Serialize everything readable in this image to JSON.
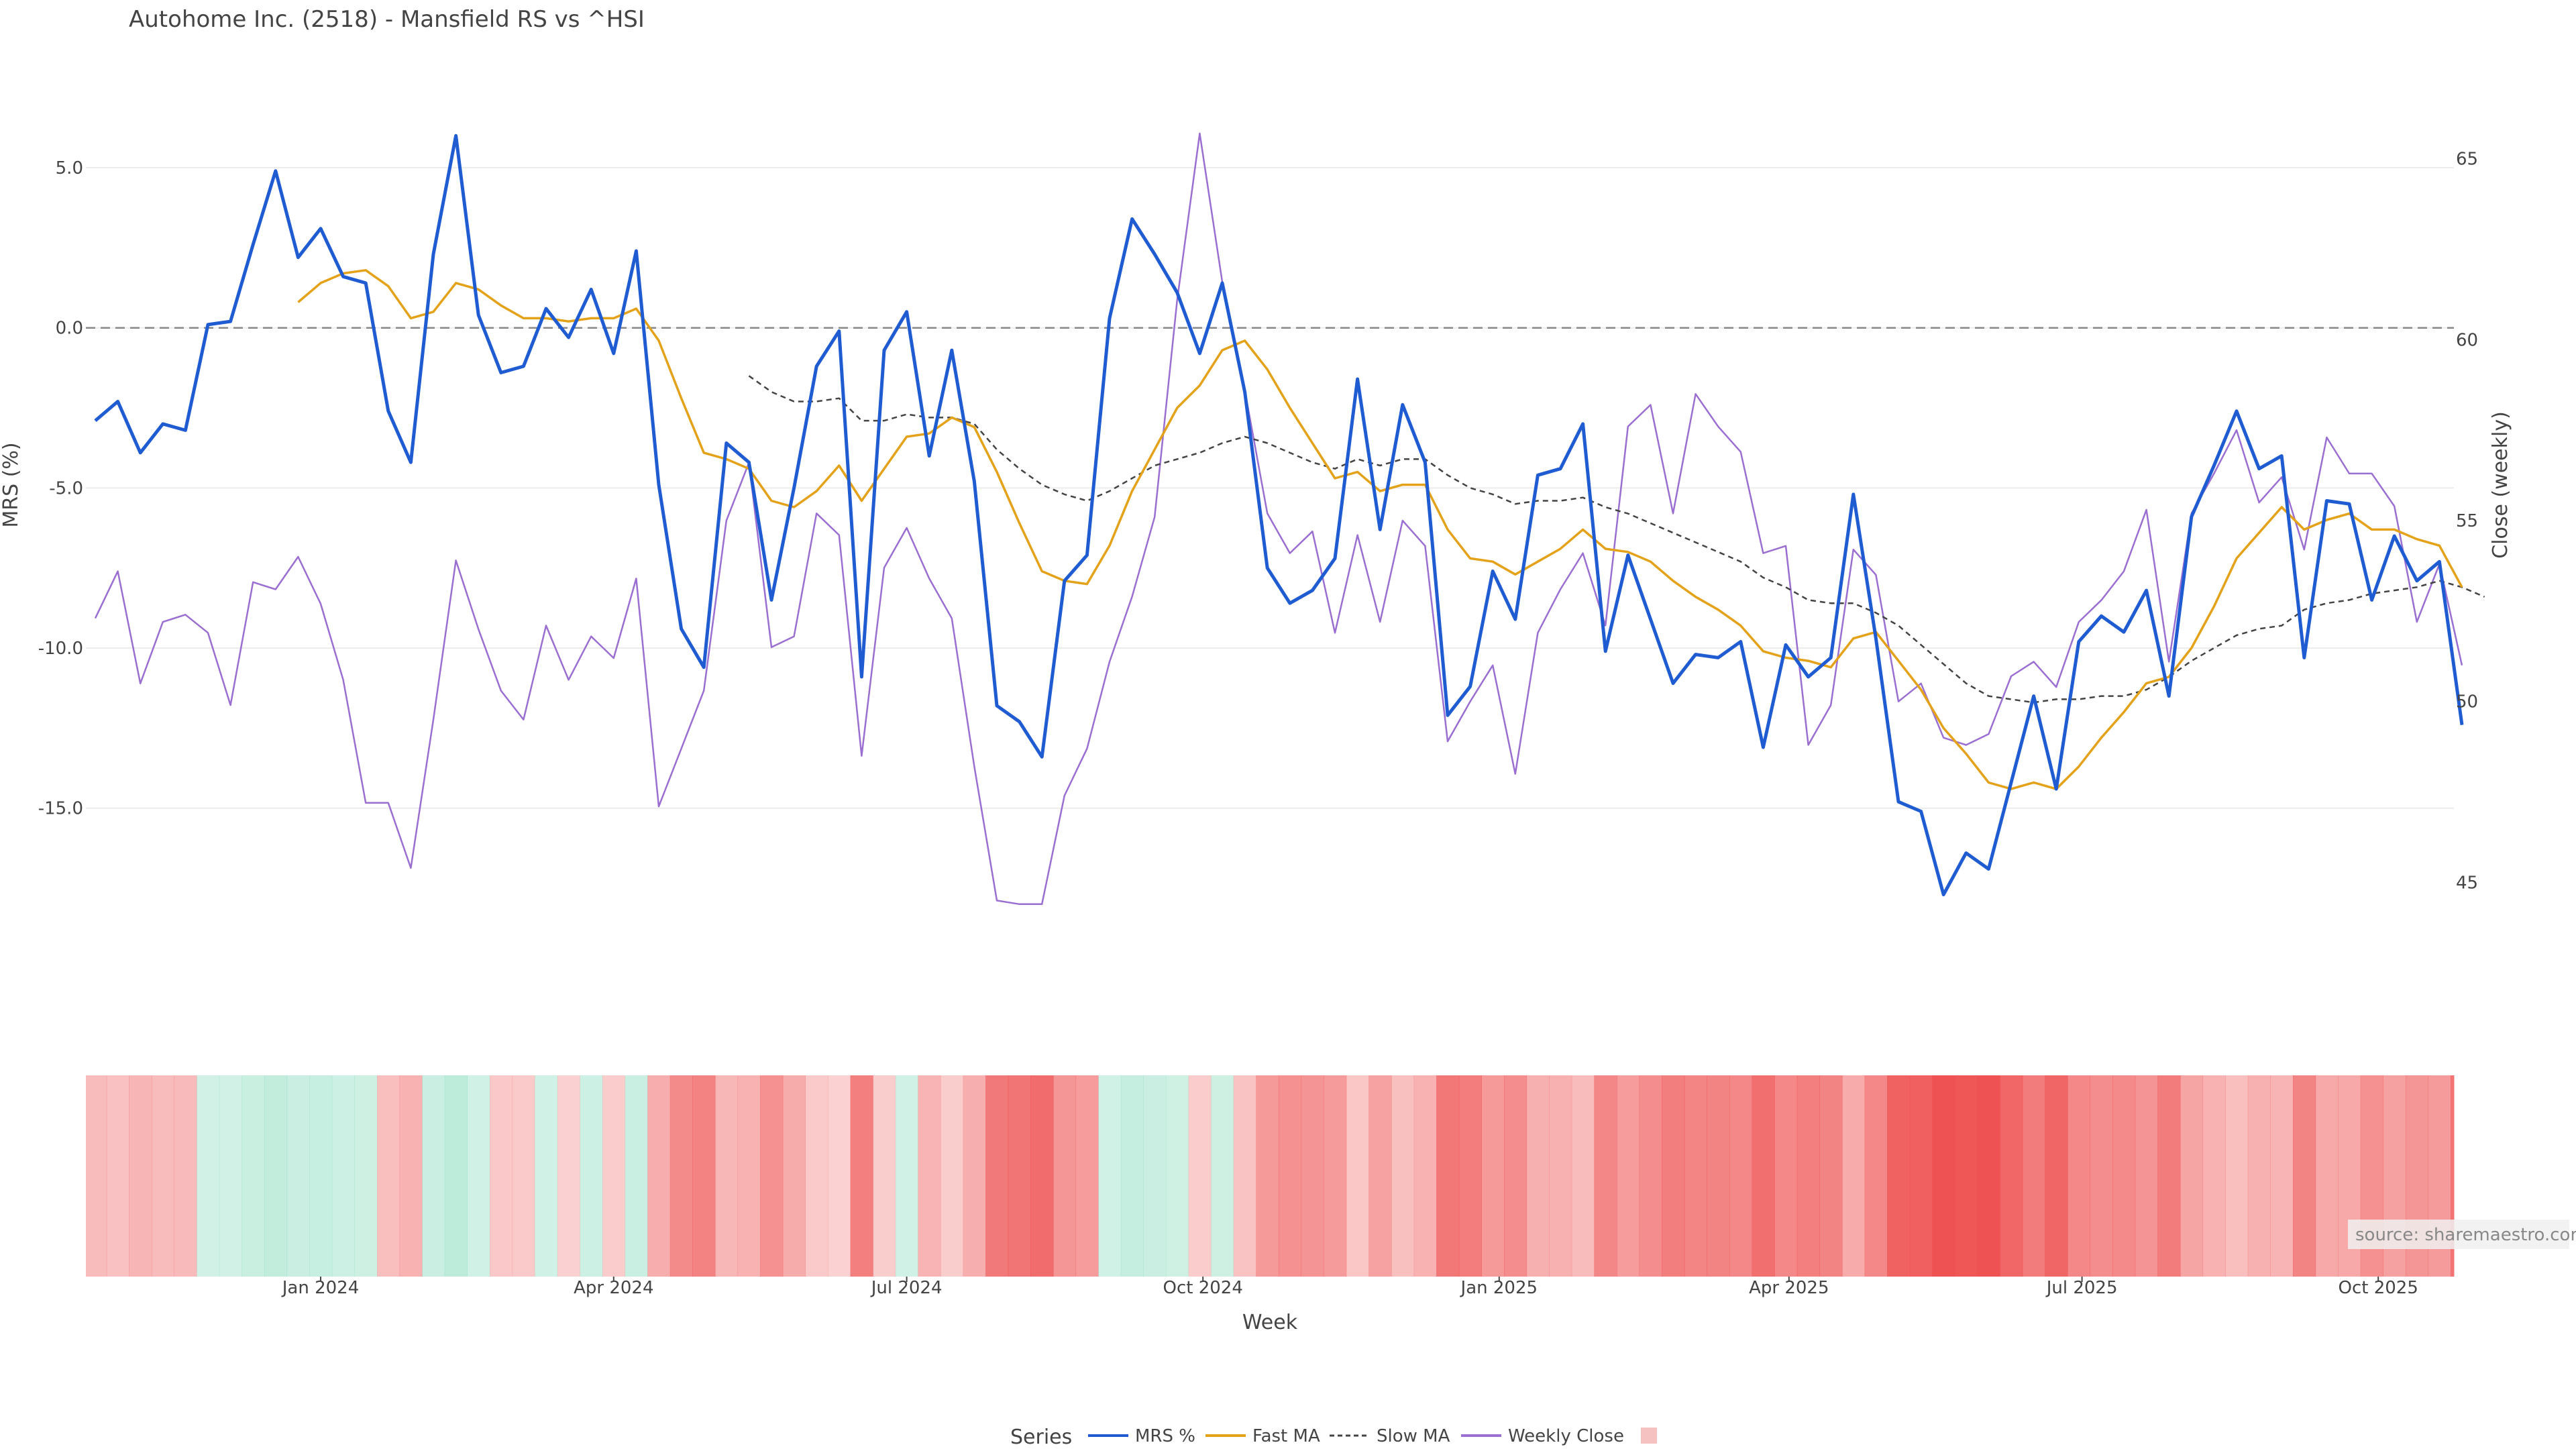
{
  "chart_data": {
    "type": "line",
    "title": "Autohome Inc. (2518) - Mansfield RS vs ^HSI",
    "xlabel": "Week",
    "ylabel_left": "MRS (%)",
    "ylabel_right": "Close (weekly)",
    "source": "source: sharemaestro.com",
    "x_start": "2023-10-23",
    "x_step_days": 7,
    "x_ticks": [
      "Jan 2024",
      "Apr 2024",
      "Jul 2024",
      "Oct 2024",
      "Jan 2025",
      "Apr 2025",
      "Jul 2025",
      "Oct 2025"
    ],
    "x_tick_dates": [
      "2024-01-01",
      "2024-04-01",
      "2024-07-01",
      "2024-10-01",
      "2025-01-01",
      "2025-04-01",
      "2025-07-01",
      "2025-10-01"
    ],
    "y_left": {
      "ticks": [
        "5.0",
        "0.0",
        "-5.0",
        "-10.0",
        "-15.0"
      ],
      "tick_values": [
        5,
        0,
        -5,
        -10,
        -15
      ],
      "range": [
        -21.5,
        7.2
      ]
    },
    "y_right": {
      "ticks": [
        "65",
        "60",
        "55",
        "50",
        "45"
      ],
      "tick_values": [
        65,
        60,
        55,
        50,
        45
      ],
      "range": [
        41.3,
        66.7
      ]
    },
    "zero_line": 0,
    "grid": true,
    "legend_title": "Series",
    "legend_position": "bottom",
    "series": [
      {
        "name": "MRS %",
        "axis": "left",
        "color": "#1f5bd1",
        "style": "solid",
        "values": [
          -2.9,
          -2.3,
          -3.9,
          -3.0,
          -3.2,
          0.1,
          0.2,
          2.6,
          4.9,
          2.2,
          3.1,
          1.6,
          1.4,
          -2.6,
          -4.2,
          2.3,
          6.0,
          0.4,
          -1.4,
          -1.2,
          0.6,
          -0.3,
          1.2,
          -0.8,
          2.4,
          -4.9,
          -9.4,
          -10.6,
          -3.6,
          -4.2,
          -8.5,
          -5.0,
          -1.2,
          -0.1,
          -10.9,
          -0.7,
          0.5,
          -4.0,
          -0.7,
          -4.8,
          -11.8,
          -12.3,
          -13.4,
          -7.9,
          -7.1,
          0.3,
          3.4,
          2.3,
          1.1,
          -0.8,
          1.4,
          -2.0,
          -7.5,
          -8.6,
          -8.2,
          -7.2,
          -1.6,
          -6.3,
          -2.4,
          -4.2,
          -12.1,
          -11.2,
          -7.6,
          -9.1,
          -4.6,
          -4.4,
          -3.0,
          -10.1,
          -7.1,
          -9.1,
          -11.1,
          -10.2,
          -10.3,
          -9.8,
          -13.1,
          -9.9,
          -10.9,
          -10.3,
          -5.2,
          -9.7,
          -14.8,
          -15.1,
          -17.7,
          -16.4,
          -16.9,
          -14.2,
          -11.5,
          -14.4,
          -9.8,
          -9.0,
          -9.5,
          -8.2,
          -11.5,
          -5.9,
          -4.3,
          -2.6,
          -4.4,
          -4.0,
          -10.3,
          -5.4,
          -5.5,
          -8.5,
          -6.5,
          -7.9,
          -7.3,
          -12.4
        ]
      },
      {
        "name": "Fast MA",
        "axis": "left",
        "color": "#e3a21a",
        "style": "solid",
        "start_index": 9,
        "values": [
          0.8,
          1.4,
          1.7,
          1.8,
          1.3,
          0.3,
          0.5,
          1.4,
          1.2,
          0.7,
          0.3,
          0.3,
          0.2,
          0.3,
          0.3,
          0.6,
          -0.4,
          -2.2,
          -3.9,
          -4.1,
          -4.4,
          -5.4,
          -5.6,
          -5.1,
          -4.3,
          -5.4,
          -4.4,
          -3.4,
          -3.3,
          -2.8,
          -3.1,
          -4.5,
          -6.1,
          -7.6,
          -7.9,
          -8.0,
          -6.8,
          -5.1,
          -3.8,
          -2.5,
          -1.8,
          -0.7,
          -0.4,
          -1.3,
          -2.5,
          -3.6,
          -4.7,
          -4.5,
          -5.1,
          -4.9,
          -4.9,
          -6.3,
          -7.2,
          -7.3,
          -7.7,
          -7.3,
          -6.9,
          -6.3,
          -6.9,
          -7.0,
          -7.3,
          -7.9,
          -8.4,
          -8.8,
          -9.3,
          -10.1,
          -10.3,
          -10.4,
          -10.6,
          -9.7,
          -9.5,
          -10.4,
          -11.3,
          -12.5,
          -13.3,
          -14.2,
          -14.4,
          -14.2,
          -14.4,
          -13.7,
          -12.8,
          -12.0,
          -11.1,
          -10.9,
          -10.0,
          -8.7,
          -7.2,
          -6.4,
          -5.6,
          -6.3,
          -6.0,
          -5.8,
          -6.3,
          -6.3,
          -6.6,
          -6.8,
          -8.1
        ]
      },
      {
        "name": "Slow MA",
        "axis": "left",
        "color": "#444444",
        "style": "dashed",
        "start_index": 29,
        "values": [
          -1.5,
          -2.0,
          -2.3,
          -2.3,
          -2.2,
          -2.9,
          -2.9,
          -2.7,
          -2.8,
          -2.8,
          -3.0,
          -3.8,
          -4.4,
          -4.9,
          -5.2,
          -5.4,
          -5.1,
          -4.7,
          -4.3,
          -4.1,
          -3.9,
          -3.6,
          -3.4,
          -3.6,
          -3.9,
          -4.2,
          -4.4,
          -4.1,
          -4.3,
          -4.1,
          -4.1,
          -4.6,
          -5.0,
          -5.2,
          -5.5,
          -5.4,
          -5.4,
          -5.3,
          -5.6,
          -5.8,
          -6.1,
          -6.4,
          -6.7,
          -7.0,
          -7.3,
          -7.8,
          -8.1,
          -8.5,
          -8.6,
          -8.6,
          -8.9,
          -9.3,
          -9.9,
          -10.5,
          -11.1,
          -11.5,
          -11.6,
          -11.7,
          -11.6,
          -11.6,
          -11.5,
          -11.5,
          -11.3,
          -10.9,
          -10.4,
          -10.0,
          -9.6,
          -9.4,
          -9.3,
          -8.8,
          -8.6,
          -8.5,
          -8.3,
          -8.2,
          -8.1,
          -7.9,
          -8.1,
          -8.4
        ]
      },
      {
        "name": "Weekly Close",
        "axis": "right",
        "color": "#9a6fd1",
        "style": "solid",
        "values": [
          52.3,
          53.6,
          50.5,
          52.2,
          52.4,
          51.9,
          49.9,
          53.3,
          53.1,
          54.0,
          52.7,
          50.6,
          47.2,
          47.2,
          45.4,
          49.5,
          53.9,
          52.0,
          50.3,
          49.5,
          52.1,
          50.6,
          51.8,
          51.2,
          53.4,
          47.1,
          48.7,
          50.3,
          55.0,
          56.6,
          51.5,
          51.8,
          55.2,
          54.6,
          48.5,
          53.7,
          54.8,
          53.4,
          52.3,
          48.2,
          44.5,
          44.4,
          44.4,
          47.4,
          48.7,
          51.1,
          52.9,
          55.1,
          61.1,
          65.7,
          61.6,
          58.6,
          55.2,
          54.1,
          54.7,
          51.9,
          54.6,
          52.2,
          55.0,
          54.3,
          48.9,
          50.0,
          51.0,
          48.0,
          51.9,
          53.1,
          54.1,
          52.1,
          57.6,
          58.2,
          55.2,
          58.5,
          57.6,
          56.9,
          54.1,
          54.3,
          48.8,
          49.9,
          54.2,
          53.5,
          50.0,
          50.5,
          49.0,
          48.8,
          49.1,
          50.7,
          51.1,
          50.4,
          52.2,
          52.8,
          53.6,
          55.3,
          51.1,
          55.2,
          56.3,
          57.5,
          55.5,
          56.2,
          54.2,
          57.3,
          56.3,
          56.3,
          55.4,
          52.2,
          53.8,
          51.0
        ]
      }
    ],
    "heatmap_strip": {
      "description_values": "weekly MRS % colour band",
      "colors": {
        "positive": "#5ccfa6",
        "negative": "#ee4c4c"
      }
    },
    "legend": [
      {
        "label": "MRS %",
        "color": "#1f5bd1",
        "style": "solid"
      },
      {
        "label": "Fast MA",
        "color": "#e3a21a",
        "style": "solid"
      },
      {
        "label": "Slow MA",
        "color": "#444444",
        "style": "dashed"
      },
      {
        "label": "Weekly Close",
        "color": "#9a6fd1",
        "style": "solid"
      },
      {
        "label": "",
        "color": "#f6c1c1",
        "style": "swatch"
      }
    ]
  }
}
